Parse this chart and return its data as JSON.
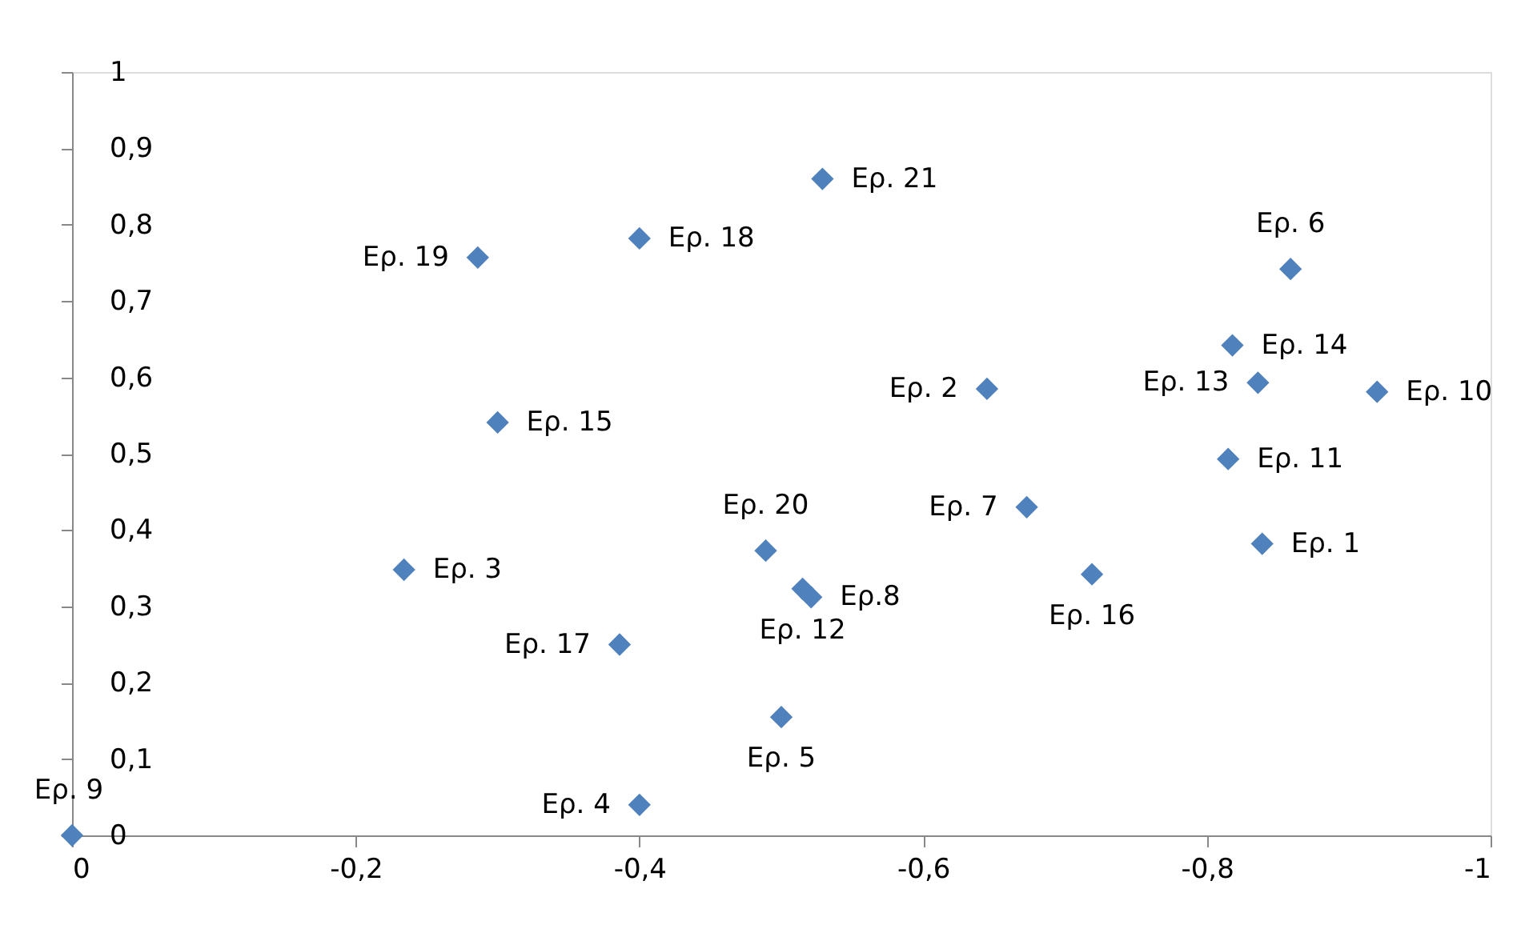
{
  "chart_data": {
    "type": "scatter",
    "marker": "diamond",
    "grid": false,
    "x": [
      -0.839,
      -0.645,
      -0.234,
      -0.4,
      -0.5,
      -0.859,
      -0.673,
      -0.521,
      0,
      -0.92,
      -0.815,
      -0.515,
      -0.836,
      -0.818,
      -0.3,
      -0.719,
      -0.386,
      -0.4,
      -0.286,
      -0.489,
      -0.529
    ],
    "series": [
      {
        "color": "#4f81bd",
        "values": [
          0.382,
          0.585,
          0.348,
          0.04,
          0.155,
          0.742,
          0.43,
          0.312,
          0,
          0.581,
          0.493,
          0.323,
          0.593,
          0.642,
          0.541,
          0.342,
          0.25,
          0.782,
          0.757,
          0.373,
          0.86
        ]
      }
    ],
    "annotations": [
      {
        "text": "Ερ. 1",
        "x": -0.839,
        "y": 0.382
      },
      {
        "text": "Ερ. 2",
        "x": -0.645,
        "y": 0.585
      },
      {
        "text": "Ερ. 3",
        "x": -0.234,
        "y": 0.348
      },
      {
        "text": "Ερ. 4",
        "x": -0.4,
        "y": 0.04
      },
      {
        "text": "Ερ. 5",
        "x": -0.5,
        "y": 0.155
      },
      {
        "text": "Ερ. 6",
        "x": -0.859,
        "y": 0.742
      },
      {
        "text": "Ερ. 7",
        "x": -0.673,
        "y": 0.43
      },
      {
        "text": "Ερ.8",
        "x": -0.521,
        "y": 0.312
      },
      {
        "text": "Ερ. 9",
        "x": 0,
        "y": 0
      },
      {
        "text": "Ερ. 10",
        "x": -0.92,
        "y": 0.581
      },
      {
        "text": "Ερ. 11",
        "x": -0.815,
        "y": 0.493
      },
      {
        "text": "Ερ. 12",
        "x": -0.515,
        "y": 0.323
      },
      {
        "text": "Ερ. 13",
        "x": -0.836,
        "y": 0.593
      },
      {
        "text": "Ερ. 14",
        "x": -0.818,
        "y": 0.642
      },
      {
        "text": "Ερ. 15",
        "x": -0.3,
        "y": 0.541
      },
      {
        "text": "Ερ. 16",
        "x": -0.719,
        "y": 0.342
      },
      {
        "text": "Ερ. 17",
        "x": -0.386,
        "y": 0.25
      },
      {
        "text": "Ερ. 18",
        "x": -0.4,
        "y": 0.782
      },
      {
        "text": "Ερ. 19",
        "x": -0.286,
        "y": 0.757
      },
      {
        "text": "Ερ. 20",
        "x": -0.489,
        "y": 0.373
      },
      {
        "text": "Ερ. 21",
        "x": -0.529,
        "y": 0.86
      }
    ],
    "xlim": [
      0,
      -1
    ],
    "xticks": [
      0,
      {
        "value": -0.2,
        "label": "-0,2"
      },
      {
        "value": -0.4,
        "label": "-0,4"
      },
      {
        "value": -0.6,
        "label": "-0,6"
      },
      {
        "value": -0.8,
        "label": "-0,8"
      },
      -1
    ],
    "ylim": [
      0,
      1
    ],
    "yticks": [
      0,
      {
        "value": 0.1,
        "label": "0,1"
      },
      {
        "value": 0.2,
        "label": "0,2"
      },
      {
        "value": 0.3,
        "label": "0,3"
      },
      {
        "value": 0.4,
        "label": "0,4"
      },
      {
        "value": 0.5,
        "label": "0,5"
      },
      {
        "value": 0.6,
        "label": "0,6"
      },
      {
        "value": 0.7,
        "label": "0,7"
      },
      {
        "value": 0.8,
        "label": "0,8"
      },
      {
        "value": 0.9,
        "label": "0,9"
      },
      1
    ]
  }
}
